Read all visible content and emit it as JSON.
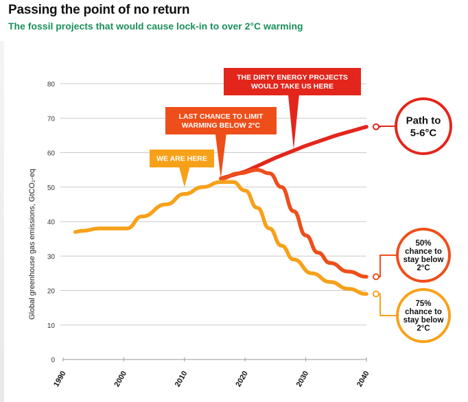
{
  "title": "Passing the point of no return",
  "subtitle": "The fossil projects that would cause lock-in to over 2°C warming",
  "chart_data": {
    "type": "line",
    "ylabel": "Global greenhouse gas emissions, GtCO₂-eq",
    "xlabel": "",
    "xlim": [
      1990,
      2040
    ],
    "ylim": [
      0,
      80
    ],
    "x_ticks": [
      "1990",
      "2000",
      "2010",
      "2020",
      "2030",
      "2040"
    ],
    "y_ticks": [
      "0",
      "10",
      "20",
      "30",
      "40",
      "50",
      "60",
      "70",
      "80"
    ],
    "grid": true,
    "colors": {
      "red": "#e3261c",
      "orange_red": "#ee4e1a",
      "orange": "#f7a11a"
    },
    "series": [
      {
        "key": "path_5_6",
        "color": "#e3261c",
        "points": [
          [
            2016,
            52.5
          ],
          [
            2020,
            54.5
          ],
          [
            2025,
            58.5
          ],
          [
            2030,
            62
          ],
          [
            2035,
            65
          ],
          [
            2040,
            67.5
          ]
        ]
      },
      {
        "key": "chance_50",
        "color": "#ee4e1a",
        "points": [
          [
            2016,
            52.5
          ],
          [
            2019,
            54
          ],
          [
            2022,
            55
          ],
          [
            2024,
            54
          ],
          [
            2026,
            50
          ],
          [
            2028,
            43
          ],
          [
            2030,
            36
          ],
          [
            2032,
            31
          ],
          [
            2034,
            28
          ],
          [
            2037,
            25.5
          ],
          [
            2040,
            24
          ]
        ]
      },
      {
        "key": "chance_75",
        "color": "#f7a11a",
        "points": [
          [
            1992,
            37
          ],
          [
            1993,
            37.3
          ],
          [
            1996,
            38
          ],
          [
            2000.5,
            38
          ],
          [
            2003,
            41.5
          ],
          [
            2007,
            45
          ],
          [
            2010,
            48
          ],
          [
            2013,
            50
          ],
          [
            2016,
            51.5
          ],
          [
            2018,
            51.5
          ],
          [
            2020,
            49
          ],
          [
            2022,
            44
          ],
          [
            2024,
            38
          ],
          [
            2026,
            33
          ],
          [
            2028,
            29
          ],
          [
            2031,
            25
          ],
          [
            2034,
            22.5
          ],
          [
            2037,
            20.5
          ],
          [
            2040,
            19
          ]
        ]
      }
    ],
    "callouts": [
      {
        "key": "dirty",
        "lines": [
          "THE DIRTY ENERGY PROJECTS",
          "WOULD TAKE US HERE"
        ],
        "color": "#e3261c",
        "pointer": [
          2028,
          61
        ]
      },
      {
        "key": "last",
        "lines": [
          "LAST CHANCE TO LIMIT",
          "WARMING BELOW 2°C"
        ],
        "color": "#ee4e1a",
        "pointer": [
          2016,
          52.5
        ]
      },
      {
        "key": "here",
        "lines": [
          "WE ARE HERE"
        ],
        "color": "#f7a11a",
        "pointer": [
          2010,
          50
        ]
      }
    ],
    "end_labels": [
      {
        "key": "path",
        "lines": [
          "Path to",
          "5-6°C"
        ],
        "color": "#e3261c",
        "anchor": [
          2040,
          67.5
        ]
      },
      {
        "key": "fifty",
        "lines": [
          "50%",
          "chance to",
          "stay below",
          "2°C"
        ],
        "color": "#ee4e1a",
        "anchor": [
          2040,
          24
        ]
      },
      {
        "key": "seventy_five",
        "lines": [
          "75%",
          "chance to",
          "stay below",
          "2°C"
        ],
        "color": "#f7a11a",
        "anchor": [
          2040,
          19
        ]
      }
    ]
  }
}
